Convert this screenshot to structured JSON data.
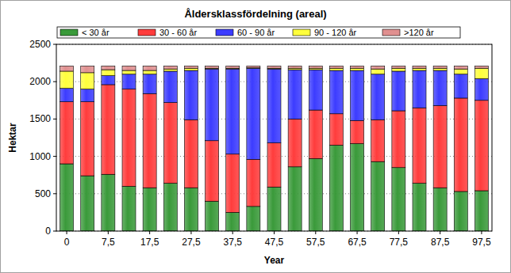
{
  "chart_data": {
    "type": "bar",
    "stacked": true,
    "title": "Åldersklassfördelning (areal)",
    "x_label": "Year",
    "y_label": "Hektar",
    "categories": [
      "0",
      null,
      "7,5",
      null,
      "17,5",
      null,
      "27,5",
      null,
      "37,5",
      null,
      "47,5",
      null,
      "57,5",
      null,
      "67,5",
      null,
      "77,5",
      null,
      "87,5",
      null,
      "97,5"
    ],
    "series": [
      {
        "name": "< 30 år",
        "color": "#3a9a3a",
        "values": [
          900,
          740,
          760,
          600,
          580,
          640,
          580,
          400,
          250,
          330,
          590,
          860,
          970,
          1150,
          1170,
          930,
          850,
          640,
          580,
          530,
          540
        ]
      },
      {
        "name": "30 - 60 år",
        "color": "#ff3c3c",
        "values": [
          830,
          990,
          1200,
          1300,
          1260,
          1080,
          910,
          810,
          780,
          630,
          590,
          640,
          650,
          420,
          310,
          560,
          760,
          1010,
          1100,
          1250,
          1210
        ]
      },
      {
        "name": "60 - 90 år",
        "color": "#3c3cff",
        "values": [
          180,
          170,
          120,
          200,
          260,
          420,
          660,
          960,
          1140,
          1220,
          990,
          660,
          540,
          580,
          670,
          610,
          530,
          500,
          470,
          320,
          290
        ]
      },
      {
        "name": "90 - 120 år",
        "color": "#ffff3c",
        "values": [
          230,
          220,
          80,
          50,
          50,
          30,
          30,
          10,
          10,
          5,
          10,
          20,
          20,
          30,
          30,
          70,
          40,
          30,
          30,
          70,
          140
        ]
      },
      {
        "name": ">120 år",
        "color": "#e09090",
        "values": [
          70,
          90,
          50,
          60,
          60,
          40,
          30,
          30,
          30,
          25,
          30,
          30,
          30,
          30,
          30,
          40,
          30,
          30,
          30,
          40,
          30
        ]
      }
    ],
    "ylim": [
      0,
      2500
    ],
    "yticks": [
      0,
      500,
      1000,
      1500,
      2000,
      2500
    ],
    "grid": true,
    "legend": "top"
  }
}
